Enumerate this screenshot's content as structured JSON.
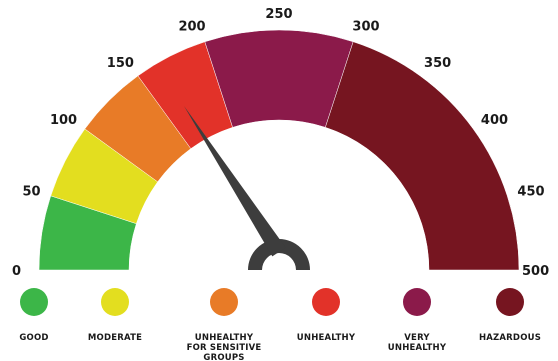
{
  "gauge": {
    "min": 0,
    "max": 500,
    "needle_value": 200,
    "ticks": [
      "0",
      "50",
      "100",
      "150",
      "200",
      "250",
      "300",
      "350",
      "400",
      "450",
      "500"
    ],
    "segments": [
      {
        "from": 0,
        "to": 50,
        "color": "#3cb648"
      },
      {
        "from": 50,
        "to": 100,
        "color": "#e3de1f"
      },
      {
        "from": 100,
        "to": 150,
        "color": "#e87b27"
      },
      {
        "from": 150,
        "to": 200,
        "color": "#e23229"
      },
      {
        "from": 200,
        "to": 300,
        "color": "#8b1a4a"
      },
      {
        "from": 300,
        "to": 500,
        "color": "#761520"
      }
    ],
    "needle_color": "#3d3d3d"
  },
  "legend": [
    {
      "label": [
        "GOOD"
      ],
      "color": "#3cb648"
    },
    {
      "label": [
        "MODERATE"
      ],
      "color": "#e3de1f"
    },
    {
      "label": [
        "UNHEALTHY",
        "FOR SENSITIVE",
        "GROUPS"
      ],
      "color": "#e87b27"
    },
    {
      "label": [
        "UNHEALTHY"
      ],
      "color": "#e23229"
    },
    {
      "label": [
        "VERY",
        "UNHEALTHY"
      ],
      "color": "#8b1a4a"
    },
    {
      "label": [
        "HAZARDOUS"
      ],
      "color": "#761520"
    }
  ]
}
